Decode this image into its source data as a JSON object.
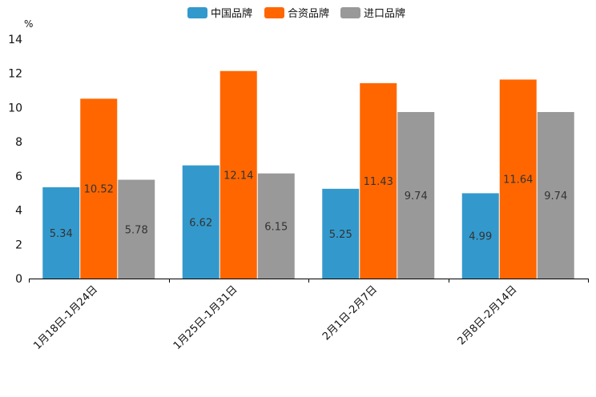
{
  "chart_data": {
    "type": "bar",
    "title": "",
    "unit": "%",
    "xlabel": "",
    "ylabel": "%",
    "ylim": [
      0,
      14
    ],
    "yticks": [
      0,
      2,
      4,
      6,
      8,
      10,
      12,
      14
    ],
    "grid": false,
    "legend_position": "top-center",
    "categories": [
      "1月18日-1月24日",
      "1月25日-1月31日",
      "2月1日-2月7日",
      "2月8日-2月14日"
    ],
    "series": [
      {
        "name": "中国品牌",
        "color": "#3399cc",
        "values": [
          5.34,
          6.62,
          5.25,
          4.99
        ],
        "labels": [
          "5.34",
          "6.62",
          "5.25",
          "4.99"
        ]
      },
      {
        "name": "合资品牌",
        "color": "#ff6600",
        "values": [
          10.52,
          12.14,
          11.43,
          11.64
        ],
        "labels": [
          "10.52",
          "12.14",
          "11.43",
          "11.64"
        ]
      },
      {
        "name": "进口品牌",
        "color": "#999999",
        "values": [
          5.78,
          6.15,
          9.74,
          9.74
        ],
        "labels": [
          "5.78",
          "6.15",
          "9.74",
          "9.74"
        ]
      }
    ]
  }
}
